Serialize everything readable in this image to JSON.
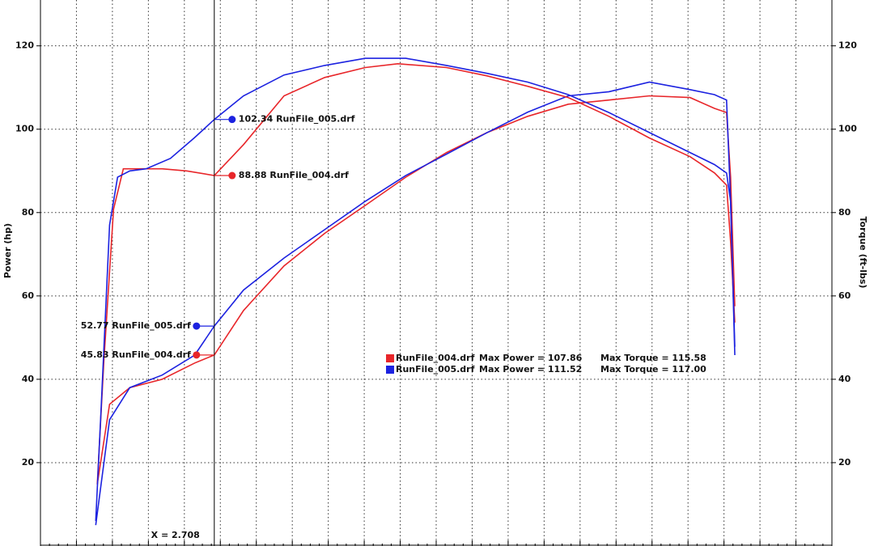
{
  "chart_data": {
    "type": "line",
    "y_label": "Power (hp)",
    "y2_label": "Torque (ft-lbs)",
    "xlim": [
      1.5,
      7.0
    ],
    "ylim": [
      0,
      131
    ],
    "yticks": [
      20,
      40,
      60,
      80,
      100,
      120
    ],
    "y2lim": [
      0,
      131
    ],
    "y2ticks": [
      20,
      40,
      60,
      80,
      100,
      120
    ],
    "grid": true,
    "series": [
      {
        "name": "RunFile_004.drf",
        "color": "#e8262a",
        "x": [
          1.895,
          1.98,
          2.121,
          2.346,
          2.572,
          2.708,
          2.911,
          3.193,
          3.475,
          3.757,
          4.039,
          4.322,
          4.604,
          4.886,
          5.168,
          5.45,
          5.732,
          6.014,
          6.184,
          6.268,
          6.296,
          6.325
        ],
        "values": [
          14.8,
          34,
          38,
          40,
          43.9,
          45.83,
          56.5,
          67.2,
          75,
          81.7,
          88.5,
          94.4,
          99.2,
          103.1,
          106,
          107,
          108,
          107.6,
          105,
          104,
          88.5,
          57.5
        ]
      },
      {
        "name": "RunFile_005.drf",
        "color": "#1c22e0",
        "x": [
          1.884,
          1.98,
          2.121,
          2.346,
          2.572,
          2.708,
          2.911,
          3.193,
          3.475,
          3.757,
          4.039,
          4.322,
          4.604,
          4.886,
          5.168,
          5.45,
          5.732,
          6.014,
          6.184,
          6.268,
          6.296,
          6.325
        ],
        "values": [
          5,
          30.3,
          38,
          41,
          45.8,
          52.77,
          61.4,
          69.1,
          75.9,
          82.7,
          88.9,
          94,
          99.2,
          104.1,
          108,
          109,
          111.3,
          109.5,
          108.3,
          107,
          82.7,
          45.8
        ]
      },
      {
        "axis": "y2",
        "color": "#e8262a",
        "x": [
          1.895,
          1.94,
          2.008,
          2.076,
          2.177,
          2.346,
          2.516,
          2.708,
          2.911,
          3.193,
          3.475,
          3.757,
          3.983,
          4.322,
          4.604,
          4.886,
          5.168,
          5.45,
          5.732,
          6.014,
          6.184,
          6.268,
          6.296,
          6.325
        ],
        "values": [
          14.8,
          43.9,
          80.8,
          90.5,
          90.5,
          90.5,
          90,
          88.88,
          96.3,
          108,
          112.4,
          114.8,
          115.7,
          114.8,
          112.8,
          110.3,
          107.6,
          103.1,
          97.9,
          93.4,
          89.5,
          86.6,
          73,
          53.6
        ]
      },
      {
        "axis": "y2",
        "color": "#1c22e0",
        "x": [
          1.884,
          1.923,
          1.98,
          2.036,
          2.121,
          2.234,
          2.403,
          2.572,
          2.708,
          2.911,
          3.193,
          3.475,
          3.757,
          4.039,
          4.322,
          4.604,
          4.886,
          5.168,
          5.45,
          5.732,
          6.014,
          6.184,
          6.268,
          6.296,
          6.325
        ],
        "values": [
          6,
          34,
          77,
          88.5,
          90,
          90.5,
          93,
          98,
          102.34,
          108,
          113,
          115.3,
          117,
          117,
          115.3,
          113.4,
          111.3,
          108.3,
          104,
          99.2,
          94.4,
          91.5,
          89.5,
          82.7,
          47.8
        ]
      }
    ],
    "cursor": {
      "x": 2.708,
      "label": "X = 2.708",
      "readouts": [
        {
          "series": 3,
          "value": 102.34,
          "label": "102.34 RunFile_005.drf"
        },
        {
          "series": 2,
          "value": 88.88,
          "label": "88.88 RunFile_004.drf"
        },
        {
          "series": 1,
          "value": 52.77,
          "label": "52.77 RunFile_005.drf"
        },
        {
          "series": 0,
          "value": 45.83,
          "label": "45.83 RunFile_004.drf"
        }
      ]
    },
    "max_stats": [
      {
        "power": "Max Power = 107.86",
        "torque": "Max Torque = 115.58"
      },
      {
        "power": "Max Power = 111.52",
        "torque": "Max Torque = 117.00"
      }
    ]
  }
}
